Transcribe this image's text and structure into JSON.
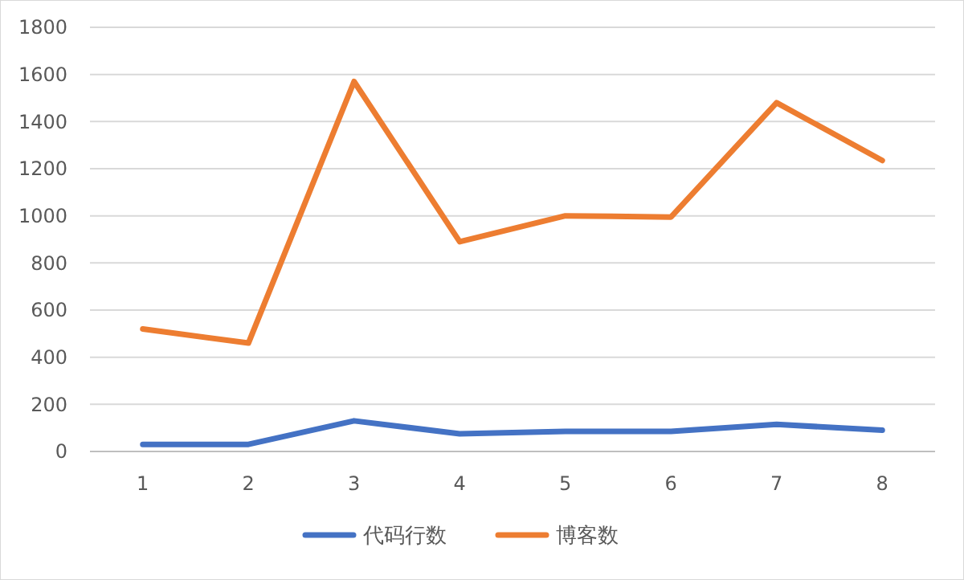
{
  "chart_data": {
    "type": "line",
    "categories": [
      "1",
      "2",
      "3",
      "4",
      "5",
      "6",
      "7",
      "8"
    ],
    "series": [
      {
        "name": "代码行数",
        "color": "#4472c4",
        "values": [
          30,
          30,
          130,
          75,
          85,
          85,
          115,
          90
        ]
      },
      {
        "name": "博客数",
        "color": "#ed7d31",
        "values": [
          520,
          460,
          1570,
          890,
          1000,
          995,
          1480,
          1235
        ]
      }
    ],
    "ylim": [
      0,
      1800
    ],
    "yticks": [
      0,
      200,
      400,
      600,
      800,
      1000,
      1200,
      1400,
      1600,
      1800
    ],
    "grid": "y",
    "legend": "bottom",
    "marker": "none",
    "line_style": "solid"
  }
}
